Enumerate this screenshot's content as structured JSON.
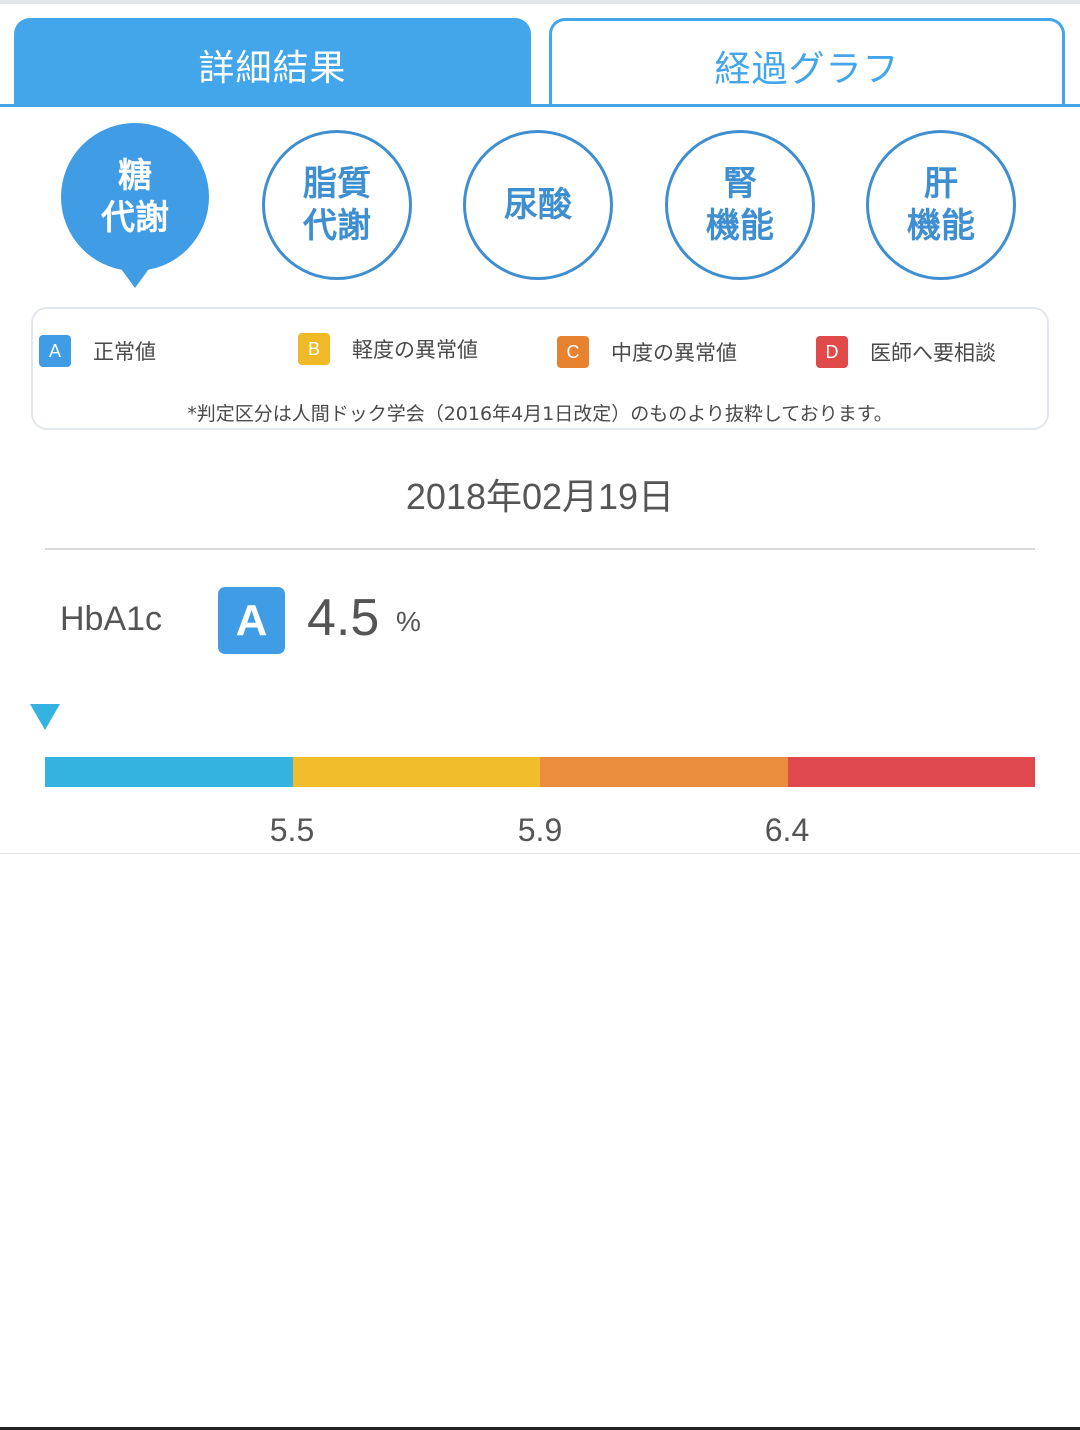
{
  "tabs": [
    {
      "label": "詳細結果",
      "active": true
    },
    {
      "label": "経過グラフ",
      "active": false
    }
  ],
  "categories": [
    {
      "line1": "糖",
      "line2": "代謝",
      "active": true
    },
    {
      "line1": "脂質",
      "line2": "代謝",
      "active": false
    },
    {
      "line1": "尿酸",
      "line2": "",
      "active": false
    },
    {
      "line1": "腎",
      "line2": "機能",
      "active": false
    },
    {
      "line1": "肝",
      "line2": "機能",
      "active": false
    }
  ],
  "legend": {
    "items": [
      {
        "grade": "A",
        "label": "正常値",
        "color": "#3f9ce5"
      },
      {
        "grade": "B",
        "label": "軽度の異常値",
        "color": "#f0b928"
      },
      {
        "grade": "C",
        "label": "中度の異常値",
        "color": "#e8822e"
      },
      {
        "grade": "D",
        "label": "医師へ要相談",
        "color": "#e04a4a"
      }
    ],
    "note": "*判定区分は人間ドック学会（2016年4月1日改定）のものより抜粋しております。"
  },
  "result": {
    "date": "2018年02月19日",
    "item_name": "HbA1c",
    "grade": "A",
    "value": "4.5",
    "value_numeric": 4.5,
    "unit": "%"
  },
  "scale": {
    "segment_colors": [
      "#34b3e0",
      "#f2bd2c",
      "#e98c3c",
      "#e04a4f"
    ],
    "thresholds": [
      "5.5",
      "5.9",
      "6.4"
    ],
    "marker_color": "#34b3e0"
  }
}
